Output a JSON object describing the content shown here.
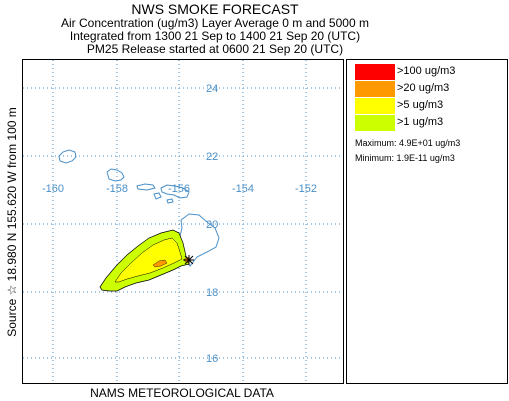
{
  "header": {
    "title": "NWS SMOKE FORECAST",
    "line1": "Air Concentration (ug/m3) Layer Average    0 m and  5000 m",
    "line2": "Integrated from 1300 21 Sep to 1400 21 Sep 20 (UTC)",
    "line3": "PM25 Release started at 0600 21 Sep 20 (UTC)"
  },
  "map": {
    "lon_labels": [
      "-160",
      "-158",
      "-156",
      "-154",
      "-152"
    ],
    "lat_labels": [
      "24",
      "22",
      "20",
      "18",
      "16"
    ],
    "source_label": "Source ☆  18.980 N 155.620  W      from  100 m",
    "footer": "NAMS METEOROLOGICAL DATA",
    "colors": {
      "coast": "#4a90c8",
      "grid": "#4a90c8",
      "plume_outer": "#ccff00",
      "plume_inner": "#ffff00",
      "plume_core": "#ff9900"
    }
  },
  "legend": {
    "items": [
      {
        "label": ">100 ug/m3",
        "color": "#ff0000"
      },
      {
        "label": ">20 ug/m3",
        "color": "#ff9900"
      },
      {
        "label": ">5 ug/m3",
        "color": "#ffff00"
      },
      {
        "label": ">1 ug/m3",
        "color": "#ccff00"
      }
    ],
    "maximum": "Maximum: 4.9E+01 ug/m3",
    "minimum": "Minimum: 1.9E-11 ug/m3"
  }
}
